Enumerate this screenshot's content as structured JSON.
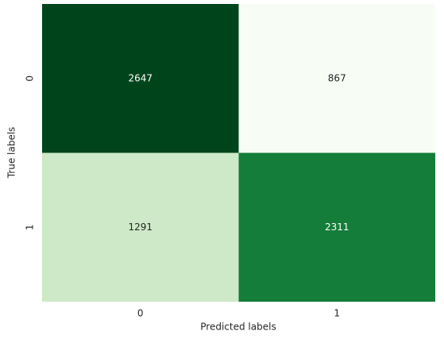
{
  "chart_data": {
    "type": "heatmap",
    "xlabel": "Predicted labels",
    "ylabel": "True labels",
    "x_categories": [
      "0",
      "1"
    ],
    "y_categories": [
      "0",
      "1"
    ],
    "values": [
      [
        2647,
        867
      ],
      [
        1291,
        2311
      ]
    ],
    "colors": [
      [
        "#00441b",
        "#f7fcf5"
      ],
      [
        "#cde9c7",
        "#137d39"
      ]
    ]
  }
}
